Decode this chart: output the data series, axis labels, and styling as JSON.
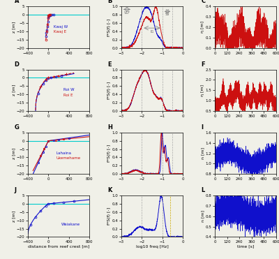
{
  "fig_width": 4.0,
  "fig_height": 3.71,
  "dpi": 100,
  "bg_color": "#f0f0e8",
  "cyan_color": "#00cccc",
  "blue_color": "#1010cc",
  "red_color": "#cc1010",
  "gold_color": "#ccaa00",
  "xlabel_col1": "distance from reef crest [m]",
  "xlabel_col2": "log10 freq [Hz]",
  "xlabel_col3": "time [s]",
  "ylabel_col1": "z [m]",
  "ylabel_col2": "f*S(f) [-]",
  "ylabel_col3_eta": "η [m]",
  "ylabel_col3_n": "n [m]"
}
